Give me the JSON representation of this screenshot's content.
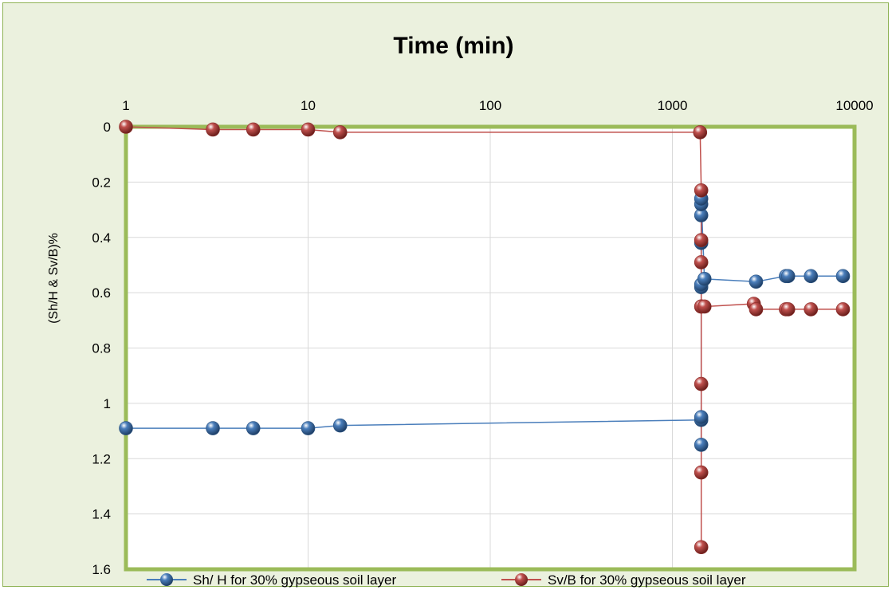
{
  "chart_data": {
    "type": "scatter",
    "title": "Time (min)",
    "xlabel": "",
    "ylabel": "(Sh/H  & Sv/B)%",
    "x_scale": "log",
    "xlim": [
      1,
      10000
    ],
    "ylim": [
      0,
      1.6
    ],
    "y_inverted": true,
    "x_axis_position": "top",
    "x_ticks": [
      "1",
      "10",
      "100",
      "1000",
      "10000"
    ],
    "y_ticks": [
      "0",
      "0.2",
      "0.4",
      "0.6",
      "0.8",
      "1",
      "1.2",
      "1.4",
      "1.6"
    ],
    "grid": true,
    "legend_position": "bottom",
    "series": [
      {
        "name": "Sh/ H for 30% gypseous soil layer",
        "color": "#4a7ebb",
        "x": [
          1,
          3,
          5,
          10,
          15,
          1440,
          1440,
          1440,
          1440,
          1440,
          1440,
          1440,
          1440,
          1440,
          1500,
          2880,
          4200,
          4320,
          5760,
          8640
        ],
        "y": [
          1.09,
          1.09,
          1.09,
          1.09,
          1.08,
          1.06,
          1.05,
          1.15,
          0.58,
          0.57,
          0.42,
          0.32,
          0.28,
          0.26,
          0.55,
          0.56,
          0.54,
          0.54,
          0.54,
          0.54
        ]
      },
      {
        "name": "Sv/B for 30% gypseous soil layer",
        "color": "#c0504d",
        "x": [
          1,
          3,
          5,
          10,
          15,
          1420,
          1440,
          1440,
          1440,
          1440,
          1440,
          1440,
          1440,
          1440,
          1500,
          2800,
          2880,
          4200,
          4320,
          5760,
          8640
        ],
        "y": [
          0,
          0.01,
          0.01,
          0.01,
          0.02,
          0.02,
          0.23,
          0.41,
          0.49,
          0.65,
          0.93,
          1.25,
          1.52,
          0.65,
          0.65,
          0.64,
          0.66,
          0.66,
          0.66,
          0.66,
          0.66
        ]
      }
    ]
  }
}
